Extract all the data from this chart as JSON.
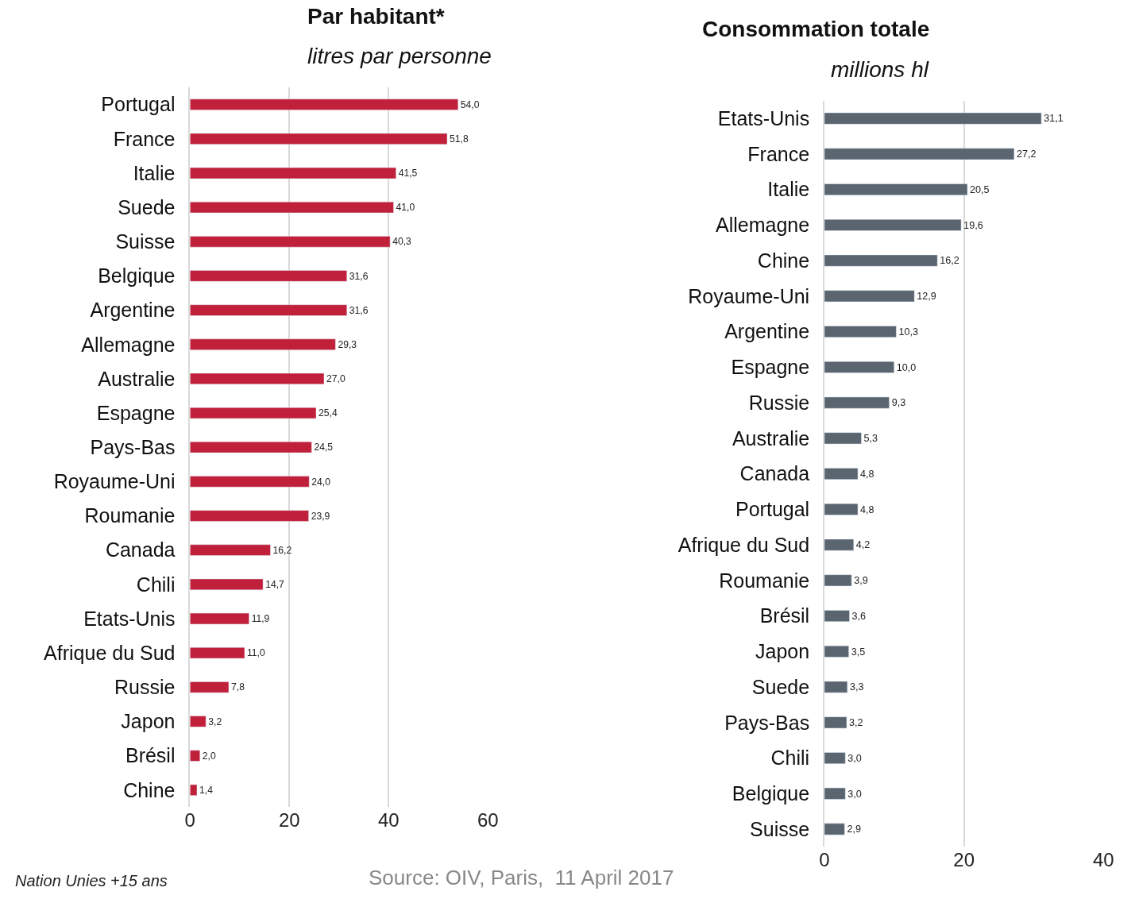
{
  "chart_data": [
    {
      "type": "bar",
      "orientation": "horizontal",
      "title": "Par habitant*",
      "subtitle": "litres par personne",
      "categories": [
        "Portugal",
        "France",
        "Italie",
        "Suede",
        "Suisse",
        "Belgique",
        "Argentine",
        "Allemagne",
        "Australie",
        "Espagne",
        "Pays-Bas",
        "Royaume-Uni",
        "Roumanie",
        "Canada",
        "Chili",
        "Etats-Unis",
        "Afrique du Sud",
        "Russie",
        "Japon",
        "Brésil",
        "Chine"
      ],
      "values": [
        54.0,
        51.8,
        41.5,
        41.0,
        40.3,
        31.6,
        31.6,
        29.3,
        27.0,
        25.4,
        24.5,
        24.0,
        23.9,
        16.2,
        14.7,
        11.9,
        11.0,
        7.8,
        3.2,
        2.0,
        1.4
      ],
      "value_labels": [
        "54,0",
        "51,8",
        "41,5",
        "41,0",
        "40,3",
        "31,6",
        "31,6",
        "29,3",
        "27,0",
        "25,4",
        "24,5",
        "24,0",
        "23,9",
        "16,2",
        "14,7",
        "11,9",
        "11,0",
        "7,8",
        "3,2",
        "2,0",
        "1,4"
      ],
      "color": "#c0203a",
      "xlim": [
        0,
        60
      ],
      "xticks": [
        0,
        20,
        40,
        60
      ],
      "grid": "x",
      "annotations": [
        "Source: OIV, Paris,  11 April 2017",
        "Nation Unies +15 ans"
      ]
    },
    {
      "type": "bar",
      "orientation": "horizontal",
      "title": "Consommation totale",
      "subtitle": "millions hl",
      "categories": [
        "Etats-Unis",
        "France",
        "Italie",
        "Allemagne",
        "Chine",
        "Royaume-Uni",
        "Argentine",
        "Espagne",
        "Russie",
        "Australie",
        "Canada",
        "Portugal",
        "Afrique du Sud",
        "Roumanie",
        "Brésil",
        "Japon",
        "Suede",
        "Pays-Bas",
        "Chili",
        "Belgique",
        "Suisse"
      ],
      "values": [
        31.1,
        27.2,
        20.5,
        19.6,
        16.2,
        12.9,
        10.3,
        10.0,
        9.3,
        5.3,
        4.8,
        4.8,
        4.2,
        3.9,
        3.6,
        3.5,
        3.3,
        3.2,
        3.0,
        3.0,
        2.9
      ],
      "value_labels": [
        "31,1",
        "27,2",
        "20,5",
        "19,6",
        "16,2",
        "12,9",
        "10,3",
        "10,0",
        "9,3",
        "5,3",
        "4,8",
        "4,8",
        "4,2",
        "3,9",
        "3,6",
        "3,5",
        "3,3",
        "3,2",
        "3,0",
        "3,0",
        "2,9"
      ],
      "color": "#5a6570",
      "xlim": [
        0,
        40
      ],
      "xticks": [
        0,
        20,
        40
      ],
      "grid": "x"
    }
  ]
}
